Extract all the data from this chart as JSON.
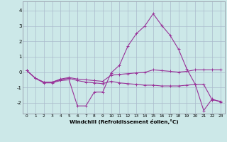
{
  "xlabel": "Windchill (Refroidissement éolien,°C)",
  "background_color": "#cce8e8",
  "line_color": "#993399",
  "grid_color": "#aabbcc",
  "hours": [
    0,
    1,
    2,
    3,
    4,
    5,
    6,
    7,
    8,
    9,
    10,
    11,
    12,
    13,
    14,
    15,
    16,
    17,
    18,
    19,
    20,
    21,
    22,
    23
  ],
  "line1": [
    0.1,
    -0.4,
    -0.7,
    -0.7,
    -0.55,
    -0.5,
    -2.2,
    -2.2,
    -1.3,
    -1.3,
    -0.05,
    0.45,
    1.7,
    2.5,
    3.0,
    3.8,
    3.05,
    2.4,
    1.5,
    0.2,
    -0.8,
    -2.5,
    -1.75,
    -1.95
  ],
  "line2": [
    0.1,
    -0.4,
    -0.65,
    -0.65,
    -0.45,
    -0.35,
    -0.45,
    -0.5,
    -0.55,
    -0.6,
    -0.2,
    -0.15,
    -0.1,
    -0.05,
    -0.02,
    0.15,
    0.1,
    0.05,
    0.0,
    0.05,
    0.15,
    0.15,
    0.15,
    0.15
  ],
  "line3": [
    0.1,
    -0.4,
    -0.65,
    -0.65,
    -0.5,
    -0.4,
    -0.55,
    -0.65,
    -0.7,
    -0.75,
    -0.6,
    -0.7,
    -0.75,
    -0.8,
    -0.85,
    -0.85,
    -0.9,
    -0.9,
    -0.9,
    -0.85,
    -0.8,
    -0.8,
    -1.8,
    -1.9
  ],
  "ylim": [
    -2.7,
    4.6
  ],
  "yticks": [
    -2,
    -1,
    0,
    1,
    2,
    3,
    4
  ],
  "xlim": [
    -0.5,
    23.5
  ]
}
